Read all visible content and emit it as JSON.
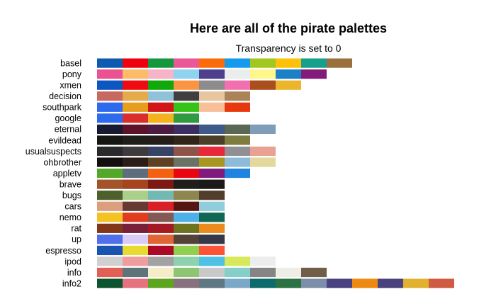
{
  "chart_data": {
    "type": "palette-swatches",
    "title": "Here are all of the pirate palettes",
    "subtitle": "Transparency is set to 0",
    "palettes": [
      {
        "name": "basel",
        "colors": [
          "#0C5BB0",
          "#EE0011",
          "#15983D",
          "#EC579A",
          "#FA6B09",
          "#149BED",
          "#A1C720",
          "#FEC10B",
          "#16A08C",
          "#9A703E"
        ]
      },
      {
        "name": "pony",
        "colors": [
          "#EB5291",
          "#FBBB68",
          "#F5B4C8",
          "#8FD3F0",
          "#4E3F8C",
          "#E9EDEC",
          "#FFF68C",
          "#1B80C4",
          "#811C7B"
        ]
      },
      {
        "name": "xmen",
        "colors": [
          "#0B56C1",
          "#EF0B10",
          "#11A80B",
          "#FB9544",
          "#8C8C8C",
          "#F370B0",
          "#A94E1C",
          "#ECB62C"
        ]
      },
      {
        "name": "decision",
        "colors": [
          "#C7695F",
          "#E6AA4B",
          "#8FC2D8",
          "#3F3F3F",
          "#E6C59F",
          "#AB8358"
        ]
      },
      {
        "name": "southpark",
        "colors": [
          "#2F6AEE",
          "#E69E1C",
          "#D21517",
          "#34C316",
          "#F9BF99",
          "#E7380F"
        ]
      },
      {
        "name": "google",
        "colors": [
          "#2D6AED",
          "#D92E29",
          "#F5B21A",
          "#2F9A3F"
        ]
      },
      {
        "name": "eternal",
        "colors": [
          "#171A31",
          "#5C1329",
          "#4D1A41",
          "#3C2D62",
          "#3E5A88",
          "#5A6755",
          "#7F9CB8"
        ]
      },
      {
        "name": "evildead",
        "colors": [
          "#161613",
          "#1E1F19",
          "#241C19",
          "#322518",
          "#4B3F28",
          "#7E7D3F"
        ]
      },
      {
        "name": "usualsuspects",
        "colors": [
          "#2A2A2A",
          "#3F3A3D",
          "#364366",
          "#8F5447",
          "#E7283A",
          "#918F94",
          "#E8A192"
        ]
      },
      {
        "name": "ohbrother",
        "colors": [
          "#150E0F",
          "#2C1D17",
          "#5E4125",
          "#697264",
          "#A7961F",
          "#8DBCDA",
          "#E3D99C"
        ]
      },
      {
        "name": "appletv",
        "colors": [
          "#53A828",
          "#5E6D7D",
          "#F36212",
          "#E80711",
          "#801A7D",
          "#1F84E0"
        ]
      },
      {
        "name": "brave",
        "colors": [
          "#A3542A",
          "#A5441E",
          "#7D1813",
          "#201E1A",
          "#1C1A19"
        ]
      },
      {
        "name": "bugs",
        "colors": [
          "#4E612C",
          "#A9CF89",
          "#73B9B2",
          "#8D864E",
          "#523D2C"
        ]
      },
      {
        "name": "cars",
        "colors": [
          "#DD9E7D",
          "#663932",
          "#D92027",
          "#561511",
          "#8FCCDC"
        ]
      },
      {
        "name": "nemo",
        "colors": [
          "#F4C323",
          "#E23C20",
          "#845855",
          "#4DB1E8",
          "#0F6754"
        ]
      },
      {
        "name": "rat",
        "colors": [
          "#813718",
          "#781F3A",
          "#A41923",
          "#6D731F",
          "#EB8B1D"
        ]
      },
      {
        "name": "up",
        "colors": [
          "#5070EA",
          "#D8CCF6",
          "#DF6537",
          "#524238",
          "#373847"
        ]
      },
      {
        "name": "espresso",
        "colors": [
          "#1A54B1",
          "#E8DA31",
          "#AD0825",
          "#91D04F",
          "#FC5437"
        ]
      },
      {
        "name": "ipod",
        "colors": [
          "#D0D0D0",
          "#EF9D9E",
          "#A2A1A3",
          "#8ED1AE",
          "#4FC1E5",
          "#D7E95B",
          "#EDEDED"
        ]
      },
      {
        "name": "info",
        "colors": [
          "#E15F55",
          "#5E747A",
          "#F4EDC8",
          "#8CC672",
          "#C9C9C9",
          "#85CFCA",
          "#858585",
          "#EEEEE4",
          "#715E48"
        ]
      },
      {
        "name": "info2",
        "colors": [
          "#0D5430",
          "#E4737F",
          "#5EA51F",
          "#86717C",
          "#607883",
          "#7CA8C7",
          "#0E6B6B",
          "#2C7245",
          "#7C8EAA",
          "#4B4283",
          "#EE8A12",
          "#4B437E",
          "#E1B12F",
          "#D05B44"
        ]
      }
    ]
  }
}
